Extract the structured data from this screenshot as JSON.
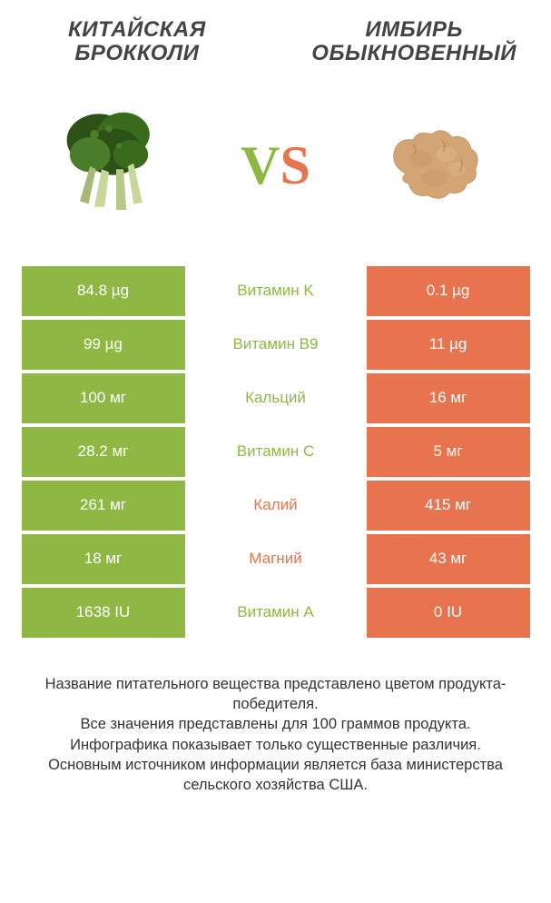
{
  "titles": {
    "left": "КИТАЙСКАЯ БРОККОЛИ",
    "right": "ИМБИРЬ ОБЫКНОВЕННЫЙ"
  },
  "vs": {
    "v": "V",
    "s": "S"
  },
  "colors": {
    "left_bg": "#8eb843",
    "right_bg": "#e8734f",
    "left_text": "#8eb843",
    "right_text": "#e8734f",
    "row_bg_white": "#ffffff"
  },
  "rows": [
    {
      "left": "84.8 µg",
      "name": "Витамин K",
      "right": "0.1 µg",
      "winner": "left"
    },
    {
      "left": "99 µg",
      "name": "Витамин B9",
      "right": "11 µg",
      "winner": "left"
    },
    {
      "left": "100 мг",
      "name": "Кальций",
      "right": "16 мг",
      "winner": "left"
    },
    {
      "left": "28.2 мг",
      "name": "Витамин C",
      "right": "5 мг",
      "winner": "left"
    },
    {
      "left": "261 мг",
      "name": "Калий",
      "right": "415 мг",
      "winner": "right"
    },
    {
      "left": "18 мг",
      "name": "Магний",
      "right": "43 мг",
      "winner": "right"
    },
    {
      "left": "1638 IU",
      "name": "Витамин A",
      "right": "0 IU",
      "winner": "left"
    }
  ],
  "footer": {
    "line1": "Название питательного вещества представлено цветом продукта-победителя.",
    "line2": "Все значения представлены для 100 граммов продукта.",
    "line3": "Инфографика показывает только существенные различия.",
    "line4": "Основным источником информации является база министерства сельского хозяйства США."
  }
}
